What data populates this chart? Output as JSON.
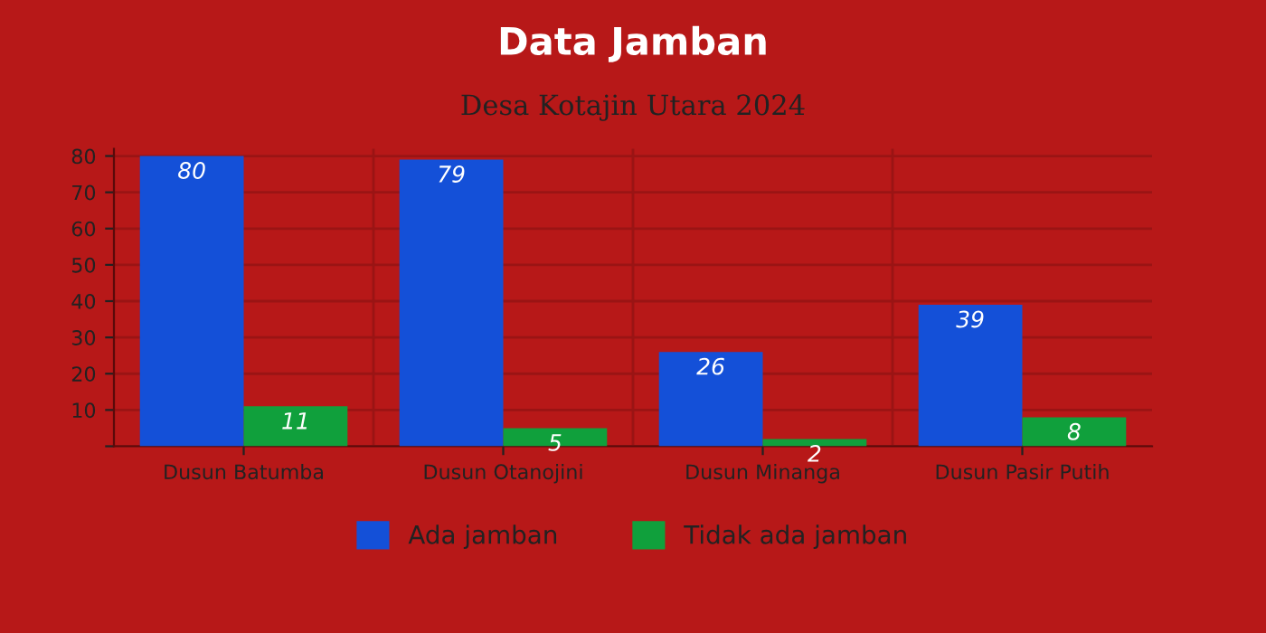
{
  "chart_data": {
    "type": "bar",
    "title": "Data Jamban",
    "subtitle": "Desa Kotajin Utara 2024",
    "categories": [
      "Dusun Batumba",
      "Dusun Otanojini",
      "Dusun Minanga",
      "Dusun Pasir Putih"
    ],
    "series": [
      {
        "name": "Ada jamban",
        "color": "#1450d8",
        "values": [
          80,
          79,
          26,
          39
        ]
      },
      {
        "name": "Tidak ada jamban",
        "color": "#10a03c",
        "values": [
          11,
          5,
          2,
          8
        ]
      }
    ],
    "ylim": [
      0,
      82
    ],
    "yticks": [
      {
        "value": 0,
        "label": null
      },
      10,
      20,
      30,
      40,
      50,
      60,
      70,
      80
    ],
    "grid": true,
    "legend": "bottom",
    "data_labels": true
  }
}
